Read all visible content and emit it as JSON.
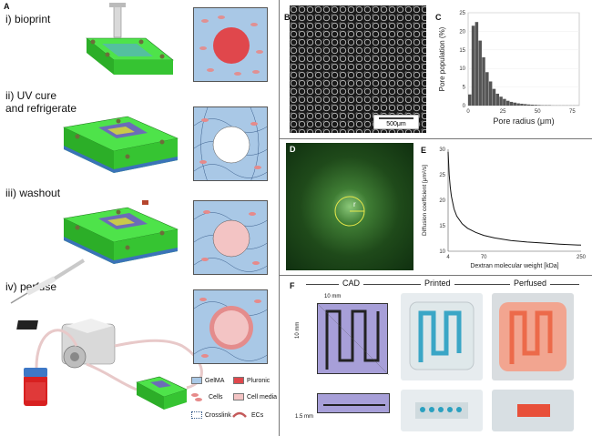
{
  "panelA": {
    "label": "A",
    "steps": [
      "i) bioprint",
      "ii) UV cure\n    and refrigerate",
      "iii) washout",
      "iv) perfuse"
    ],
    "legend": {
      "gelma": "GelMA",
      "pluronic": "Pluronic",
      "cells": "Cells",
      "cell_media": "Cell media",
      "crosslink": "Crosslink",
      "ecs": "ECs"
    },
    "colors": {
      "device": "#3fd43a",
      "gelma": "#a9c8e6",
      "pluronic": "#e0474c",
      "media": "#f3c4c4"
    }
  },
  "panelB": {
    "label": "B",
    "scale": "500μm"
  },
  "panelC": {
    "label": "C"
  },
  "panelD": {
    "label": "D",
    "radius_label": "r"
  },
  "panelE": {
    "label": "E"
  },
  "panelF": {
    "label": "F",
    "headers": {
      "cad": "CAD",
      "printed": "Printed",
      "perfused": "Perfused"
    },
    "dims": {
      "width": "10 mm",
      "height": "10 mm",
      "thickness": "1.5 mm"
    }
  },
  "chart_data": [
    {
      "type": "bar",
      "title": "",
      "xlabel": "Pore radius (μm)",
      "ylabel": "Pore population (%)",
      "xlim": [
        0,
        80
      ],
      "ylim": [
        0,
        25
      ],
      "xticks": [
        "0",
        "25",
        "50",
        "75"
      ],
      "yticks": [
        "0",
        "5",
        "10",
        "15",
        "20",
        "25"
      ],
      "bin_width": 2.5,
      "values": [
        3,
        21.5,
        22.5,
        17.5,
        13,
        9,
        6.5,
        4.5,
        3.2,
        2.4,
        1.8,
        1.3,
        1,
        0.8,
        0.6,
        0.5,
        0.4,
        0.3,
        0.25,
        0.2,
        0.15,
        0.1,
        0.1,
        0.1,
        0.05,
        0.05,
        0.05,
        0.05,
        0.05,
        0.05,
        0.05,
        0.05
      ]
    },
    {
      "type": "line",
      "title": "",
      "xlabel": "Dextran molecular weight [kDa]",
      "ylabel": "Diffusion coefficient [μm²/s]",
      "xlim": [
        4,
        250
      ],
      "ylim": [
        10,
        30
      ],
      "xticks": [
        "4",
        "70",
        "250"
      ],
      "yticks": [
        "10",
        "15",
        "20",
        "25",
        "30"
      ],
      "x": [
        4,
        6,
        8,
        10,
        15,
        20,
        30,
        40,
        55,
        70,
        90,
        120,
        150,
        180,
        210,
        250
      ],
      "y": [
        29.5,
        25,
        22.5,
        20.8,
        18.3,
        16.9,
        15.4,
        14.5,
        13.7,
        13.1,
        12.6,
        12.1,
        11.8,
        11.6,
        11.4,
        11.2
      ]
    }
  ]
}
